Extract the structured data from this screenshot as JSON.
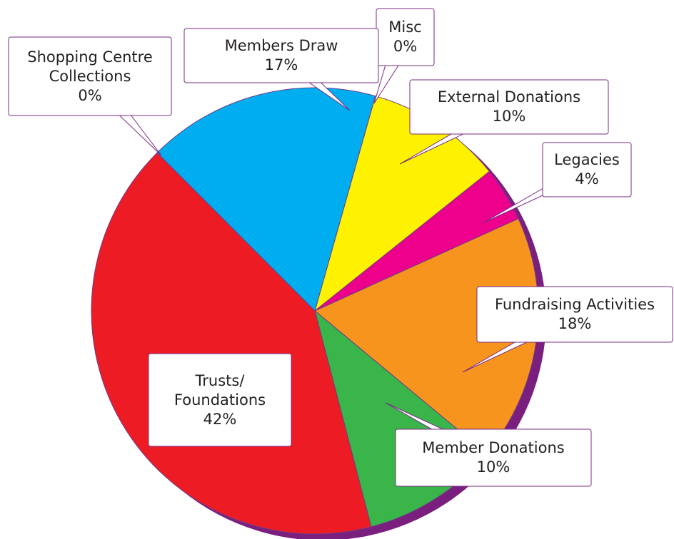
{
  "chart_data": {
    "type": "pie",
    "categories": [
      "Misc",
      "External Donations",
      "Legacies",
      "Fundraising Activities",
      "Member Donations",
      "Trusts/ Foundations",
      "Shopping Centre Collections",
      "Members Draw"
    ],
    "values": [
      0,
      10,
      4,
      18,
      10,
      42,
      0,
      17
    ],
    "value_labels": [
      "0%",
      "10%",
      "4%",
      "18%",
      "10%",
      "42%",
      "0%",
      "17%"
    ],
    "colors": [
      "#ffffff",
      "#fff200",
      "#ec008c",
      "#f7941d",
      "#39b54a",
      "#ed1c24",
      "#ffffff",
      "#00aeef"
    ]
  }
}
